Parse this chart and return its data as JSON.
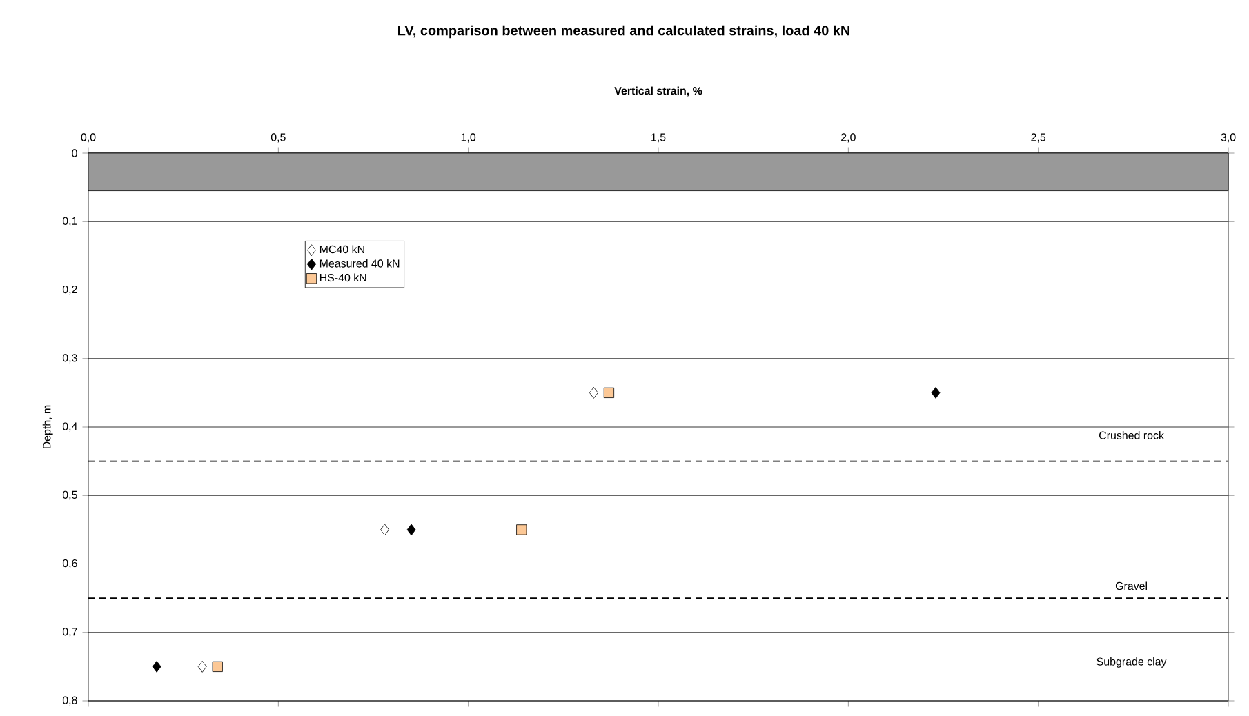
{
  "chart_data": {
    "type": "scatter",
    "title": "LV, comparison between measured and calculated strains, load 40 kN",
    "xlabel": "Vertical strain, %",
    "ylabel": "Depth, m",
    "series": [
      {
        "name": "MC40 kN",
        "color": "#ffffff",
        "marker": "diamond",
        "x": [
          1.33,
          0.78,
          0.3
        ],
        "values": [
          0.35,
          0.55,
          0.75
        ]
      },
      {
        "name": "Measured 40 kN",
        "color": "#000000",
        "marker": "diamond",
        "x": [
          2.23,
          0.85,
          0.18
        ],
        "values": [
          0.35,
          0.55,
          0.75
        ]
      },
      {
        "name": "HS-40 kN",
        "color": "#fcc896",
        "marker": "square",
        "x": [
          1.37,
          1.14,
          0.34
        ],
        "values": [
          0.35,
          0.55,
          0.75
        ]
      }
    ],
    "xlim": [
      0,
      3
    ],
    "ylim": [
      0.8,
      0
    ],
    "xticks": [
      {
        "value": 0,
        "label": "0,0"
      },
      {
        "value": 0.5,
        "label": "0,5"
      },
      {
        "value": 1,
        "label": "1,0"
      },
      {
        "value": 1.5,
        "label": "1,5"
      },
      {
        "value": 2,
        "label": "2,0"
      },
      {
        "value": 2.5,
        "label": "2,5"
      },
      {
        "value": 3,
        "label": "3,0"
      }
    ],
    "yticks": [
      0,
      {
        "value": 0.1,
        "label": "0,1"
      },
      {
        "value": 0.2,
        "label": "0,2"
      },
      {
        "value": 0.3,
        "label": "0,3"
      },
      {
        "value": 0.4,
        "label": "0,4"
      },
      {
        "value": 0.5,
        "label": "0,5"
      },
      {
        "value": 0.6,
        "label": "0,6"
      },
      {
        "value": 0.7,
        "label": "0,7"
      },
      {
        "value": 0.8,
        "label": "0,8"
      }
    ],
    "grid": "y",
    "legend": "top left",
    "bands": [
      {
        "axis": "y",
        "from": 0,
        "to": 0.055,
        "color": "#999999"
      }
    ],
    "ref_lines": [
      {
        "axis": "y",
        "value": 0.45,
        "line_style": "dashed"
      },
      {
        "axis": "y",
        "value": 0.65,
        "line_style": "dashed"
      }
    ],
    "annotations": [
      "Crushed rock",
      "Gravel",
      "Subgrade clay"
    ]
  }
}
